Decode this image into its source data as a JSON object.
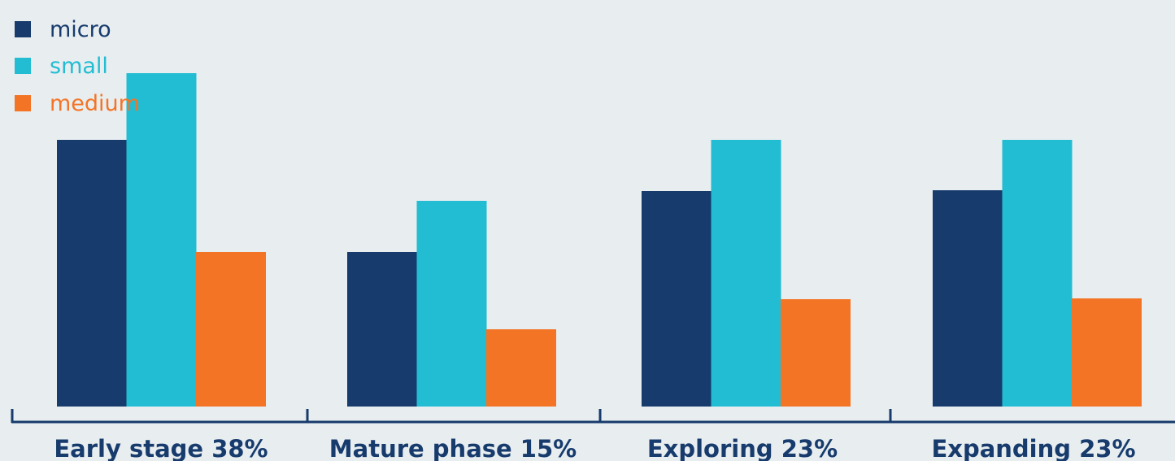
{
  "chart_data": {
    "type": "bar",
    "categories": [
      "Early stage 38%",
      "Mature phase 15%",
      "Exploring 23%",
      "Expanding 23%"
    ],
    "series": [
      {
        "name": "micro",
        "color": "#163B6C",
        "values": [
          32.8,
          19.0,
          26.5,
          26.6
        ]
      },
      {
        "name": "small",
        "color": "#22BDD2",
        "values": [
          41.0,
          25.3,
          32.8,
          32.8
        ]
      },
      {
        "name": "medium",
        "color": "#F47425",
        "values": [
          19.0,
          9.5,
          13.2,
          13.3
        ]
      }
    ],
    "ylim": [
      0,
      50
    ],
    "grid": false,
    "legend": {
      "placement": "top-left",
      "entries": [
        "micro",
        "small",
        "medium"
      ]
    },
    "title": "",
    "xlabel": "",
    "ylabel": "",
    "colors": {
      "axis": "#163B6C",
      "background": "#E8EDF0"
    }
  }
}
